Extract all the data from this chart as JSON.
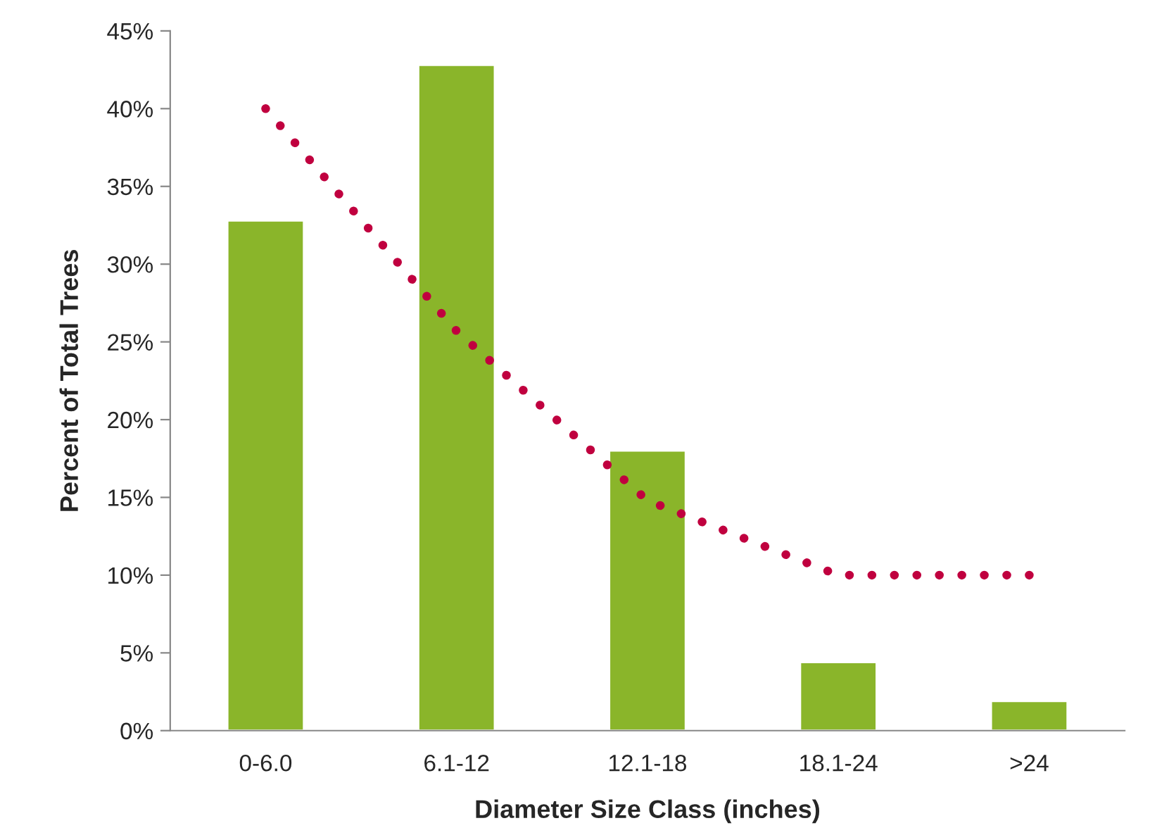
{
  "chart_data": {
    "type": "bar",
    "xlabel": "Diameter Size Class (inches)",
    "ylabel": "Percent of Total Trees",
    "categories": [
      "0-6.0",
      "6.1-12",
      "12.1-18",
      "18.1-24",
      ">24"
    ],
    "series": [
      {
        "color": "#8ab52a",
        "values": [
          32.8,
          42.8,
          18,
          4.4,
          1.9
        ]
      },
      {
        "type": "line",
        "color": "#c0003f",
        "line_style": "dotted",
        "values": [
          40,
          25.7,
          14.8,
          10,
          10
        ]
      }
    ],
    "ylim": [
      0,
      45
    ],
    "yticks": [
      {
        "value": 0,
        "label": "0%"
      },
      {
        "value": 5,
        "label": "5%"
      },
      {
        "value": 10,
        "label": "10%"
      },
      {
        "value": 15,
        "label": "15%"
      },
      {
        "value": 20,
        "label": "20%"
      },
      {
        "value": 25,
        "label": "25%"
      },
      {
        "value": 30,
        "label": "30%"
      },
      {
        "value": 35,
        "label": "35%"
      },
      {
        "value": 40,
        "label": "40%"
      },
      {
        "value": 45,
        "label": "45%"
      }
    ],
    "grid": false,
    "legend": false
  }
}
